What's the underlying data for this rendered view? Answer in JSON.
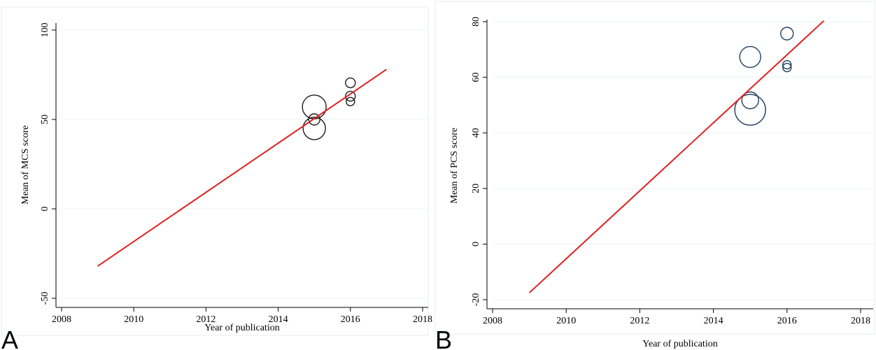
{
  "chart_data": [
    {
      "type": "scatter",
      "panel_label": "A",
      "xlabel": "Year of publication",
      "ylabel": "Mean of MCS score",
      "xlim": [
        2008,
        2018
      ],
      "ylim": [
        -50,
        100
      ],
      "xticks": [
        "2008",
        "2010",
        "2012",
        "2014",
        "2016",
        "2018"
      ],
      "yticks": [
        "-50",
        "0",
        "50",
        "100"
      ],
      "grid": true,
      "points": [
        {
          "x": 2015,
          "y": 57,
          "r": 17
        },
        {
          "x": 2015,
          "y": 45,
          "r": 16
        },
        {
          "x": 2015,
          "y": 50,
          "r": 8
        },
        {
          "x": 2016,
          "y": 70.5,
          "r": 7
        },
        {
          "x": 2016,
          "y": 63,
          "r": 7
        },
        {
          "x": 2016,
          "y": 60,
          "r": 6
        }
      ],
      "fit_line": {
        "x": [
          2009,
          2017
        ],
        "y": [
          -32,
          78
        ]
      },
      "colors": {
        "points": "#1a1a1a",
        "fit": "#e02020"
      }
    },
    {
      "type": "scatter",
      "panel_label": "B",
      "xlabel": "Year of publication",
      "ylabel": "Mean of PCS score",
      "xlim": [
        2008,
        2018
      ],
      "ylim": [
        -20,
        80
      ],
      "xticks": [
        "2008",
        "2010",
        "2012",
        "2014",
        "2016",
        "2018"
      ],
      "yticks": [
        "-20",
        "0",
        "20",
        "40",
        "60",
        "80"
      ],
      "grid": true,
      "points": [
        {
          "x": 2015,
          "y": 67.3,
          "r": 15
        },
        {
          "x": 2015,
          "y": 51.7,
          "r": 12
        },
        {
          "x": 2015,
          "y": 48.3,
          "r": 22
        },
        {
          "x": 2016,
          "y": 75.7,
          "r": 9
        },
        {
          "x": 2016,
          "y": 64.5,
          "r": 6
        },
        {
          "x": 2016,
          "y": 63.5,
          "r": 6
        }
      ],
      "fit_line": {
        "x": [
          2009,
          2017
        ],
        "y": [
          -17.5,
          80.3
        ]
      },
      "colors": {
        "points": "#1f3f5f",
        "fit": "#e02020"
      }
    }
  ]
}
